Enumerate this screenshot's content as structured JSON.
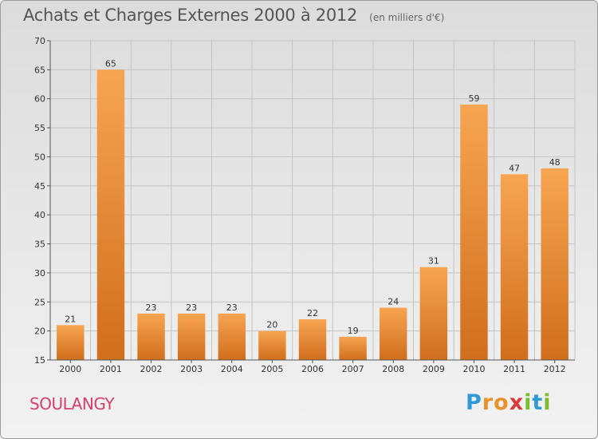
{
  "header": {
    "title": "Achats et Charges Externes 2000 à 2012",
    "unit": "(en milliers d'€)"
  },
  "footer": {
    "commune": "SOULANGY",
    "logo": {
      "letters": [
        "P",
        "r",
        "o",
        "x",
        "i",
        "t",
        "i"
      ],
      "colors": [
        "#2e9ad6",
        "#e8922a",
        "#e8922a",
        "#d93b3b",
        "#7dbb2f",
        "#2e9ad6",
        "#7dbb2f"
      ]
    }
  },
  "colors": {
    "bar_top": "#f7a552",
    "bar_bottom": "#d06e1c",
    "grid": "#c4c4c4"
  },
  "chart_data": {
    "type": "bar",
    "title": "Achats et Charges Externes 2000 à 2012",
    "subtitle": "(en milliers d'€)",
    "categories": [
      "2000",
      "2001",
      "2002",
      "2003",
      "2004",
      "2005",
      "2006",
      "2007",
      "2008",
      "2009",
      "2010",
      "2011",
      "2012"
    ],
    "values": [
      21,
      65,
      23,
      23,
      23,
      20,
      22,
      19,
      24,
      31,
      59,
      47,
      48
    ],
    "ylim": [
      15,
      70
    ],
    "yticks": [
      15,
      20,
      25,
      30,
      35,
      40,
      45,
      50,
      55,
      60,
      65,
      70
    ],
    "grid": true,
    "xlabel": "",
    "ylabel": ""
  }
}
